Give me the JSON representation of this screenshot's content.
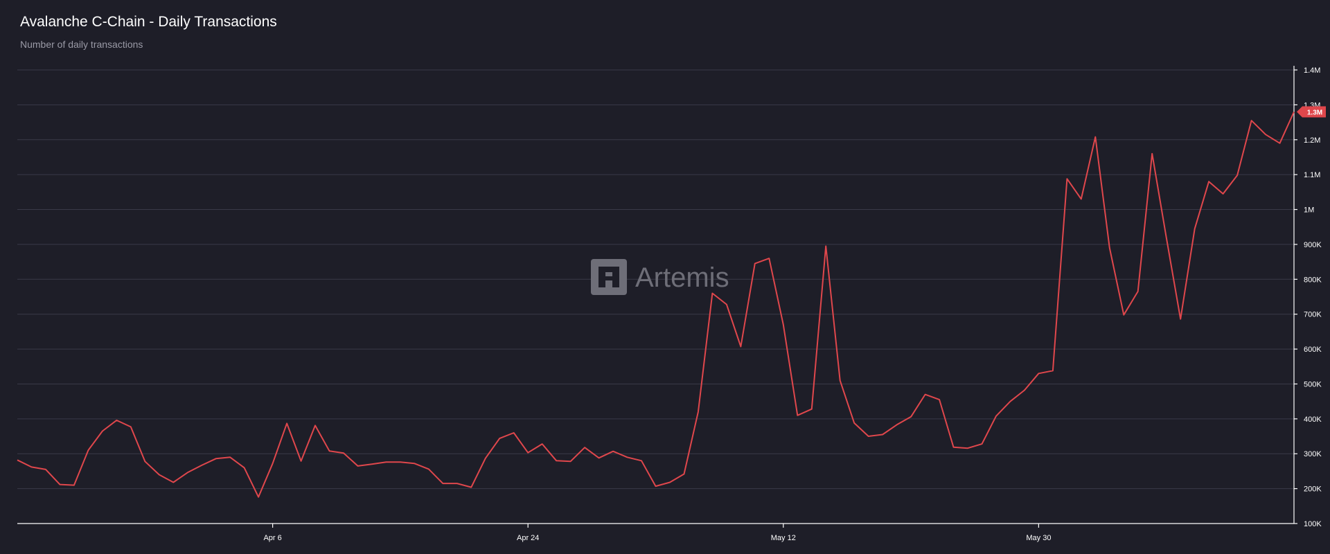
{
  "chart_data": {
    "type": "line",
    "title": "Avalanche C-Chain - Daily Transactions",
    "subtitle": "Number of daily transactions",
    "xlabel": "",
    "ylabel": "",
    "ylim": [
      100000,
      1400000
    ],
    "y_ticks": [
      100000,
      200000,
      300000,
      400000,
      500000,
      600000,
      700000,
      800000,
      900000,
      1000000,
      1100000,
      1200000,
      1300000,
      1400000
    ],
    "y_tick_labels": [
      "100K",
      "200K",
      "300K",
      "400K",
      "500K",
      "600K",
      "700K",
      "800K",
      "900K",
      "1M",
      "1.1M",
      "1.2M",
      "1.3M",
      "1.4M"
    ],
    "x_start": "2025-03-19",
    "x_ticks": [
      {
        "label": "Apr 6",
        "day": 18
      },
      {
        "label": "Apr 24",
        "day": 36
      },
      {
        "label": "May 12",
        "day": 54
      },
      {
        "label": "May 30",
        "day": 72
      }
    ],
    "grid": true,
    "series": [
      {
        "name": "",
        "color": "#e0474c",
        "values": [
          282000,
          262000,
          255000,
          212000,
          210000,
          310000,
          365000,
          396000,
          377000,
          278000,
          240000,
          218000,
          246000,
          267000,
          286000,
          290000,
          260000,
          176000,
          272000,
          387000,
          279000,
          381000,
          308000,
          302000,
          265000,
          270000,
          276000,
          276000,
          272000,
          256000,
          215000,
          215000,
          204000,
          287000,
          344000,
          360000,
          303000,
          328000,
          280000,
          278000,
          318000,
          288000,
          307000,
          290000,
          280000,
          207000,
          218000,
          242000,
          420000,
          760000,
          728000,
          607000,
          845000,
          860000,
          670000,
          410000,
          428000,
          895000,
          510000,
          388000,
          350000,
          355000,
          383000,
          406000,
          470000,
          455000,
          319000,
          316000,
          328000,
          408000,
          450000,
          482000,
          530000,
          538000,
          1088000,
          1030000,
          1208000,
          890000,
          698000,
          765000,
          1160000,
          920000,
          686000,
          945000,
          1080000,
          1045000,
          1098000,
          1255000,
          1215000,
          1190000,
          1280000
        ]
      }
    ],
    "last_value_label": "1.3M",
    "watermark": "Artemis"
  }
}
